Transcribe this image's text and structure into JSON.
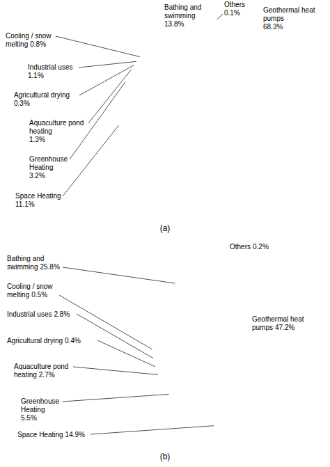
{
  "chart_data": [
    {
      "type": "pie",
      "title": "(a)",
      "categories": [
        "Geothermal heat pumps",
        "Space Heating",
        "Greenhouse Heating",
        "Aquaculture pond heating",
        "Agricultural drying",
        "Industrial uses",
        "Cooling / snow melting",
        "Bathing and swimming",
        "Others"
      ],
      "values": [
        68.3,
        11.1,
        3.2,
        1.3,
        0.3,
        1.1,
        0.8,
        13.8,
        0.1
      ],
      "value_labels": [
        "68.3%",
        "11.1%",
        "3.2%",
        "1.3%",
        "0.3%",
        "1.1%",
        "0.8%",
        "13.8%",
        "0.1%"
      ],
      "colors": [
        "#9999ff",
        "#993366",
        "#ffffcc",
        "#ccffff",
        "#660066",
        "#ff8080",
        "#0066cc",
        "#ccccff",
        "#000080"
      ],
      "data_labels": true
    },
    {
      "type": "pie",
      "title": "(b)",
      "categories": [
        "Geothermal heat pumps",
        "Space Heating",
        "Greenhouse Heating",
        "Aquaculture pond heating",
        "Agricultural drying",
        "Industrial uses",
        "Cooling / snow melting",
        "Bathing and swimming",
        "Others"
      ],
      "values": [
        47.2,
        14.9,
        5.5,
        2.7,
        0.4,
        2.8,
        0.5,
        25.8,
        0.2
      ],
      "value_labels": [
        "47.2%",
        "14.9%",
        "5.5%",
        "2.7%",
        "0.4%",
        "2.8%",
        "0.5%",
        "25.8%",
        "0.2%"
      ],
      "colors": [
        "#9999ff",
        "#993366",
        "#ffffcc",
        "#ccffff",
        "#660066",
        "#ff8080",
        "#0066cc",
        "#ccccff",
        "#000080"
      ],
      "data_labels": true
    }
  ]
}
